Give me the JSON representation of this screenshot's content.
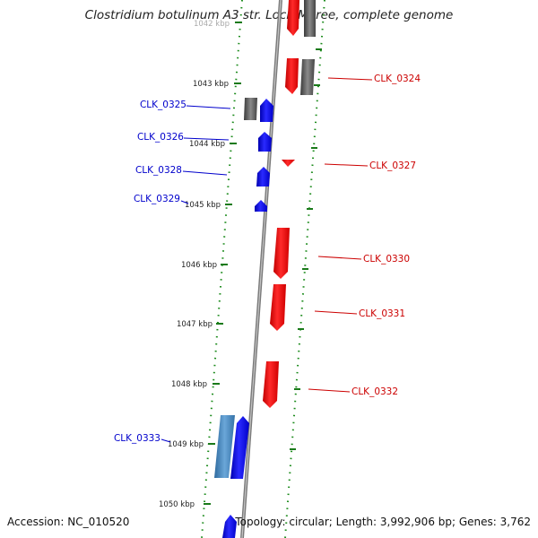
{
  "title": "Clostridium botulinum A3 str. Loch Maree, complete genome",
  "footer": {
    "accession": "Accession: NC_010520",
    "summary": "Topology: circular; Length: 3,992,906 bp; Genes: 3,762"
  },
  "colors": {
    "forward_gene": "#0000ff",
    "forward_gene_light": "#4a86c0",
    "reverse_gene": "#ff0000",
    "other_gene": "#666666",
    "backbone": "#8a8a8a",
    "tick": "#1a7a1a",
    "forward_label": "#0000cc",
    "reverse_label": "#cc0000"
  },
  "ticks": [
    "1042 kbp",
    "1043 kbp",
    "1044 kbp",
    "1045 kbp",
    "1046 kbp",
    "1047 kbp",
    "1048 kbp",
    "1049 kbp",
    "1050 kbp"
  ],
  "forward_genes": [
    "CLK_0325",
    "CLK_0326",
    "CLK_0328",
    "CLK_0329",
    "CLK_0333"
  ],
  "reverse_genes": [
    "CLK_0324",
    "CLK_0327",
    "CLK_0330",
    "CLK_0331",
    "CLK_0332"
  ]
}
